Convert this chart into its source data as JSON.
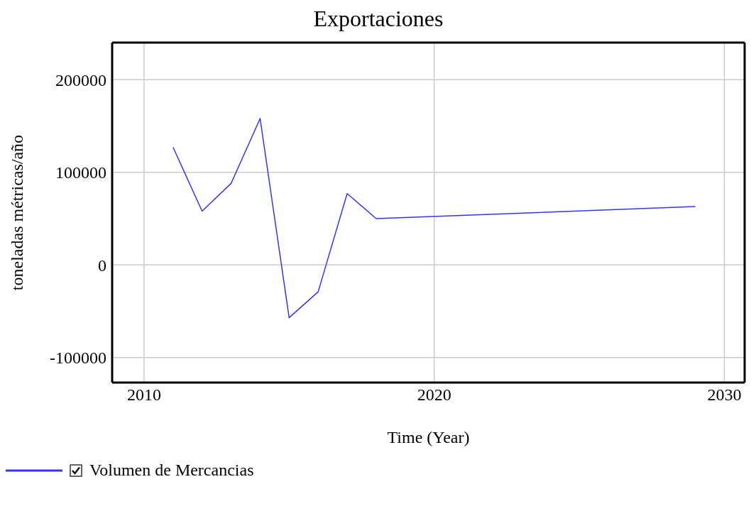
{
  "chart_data": {
    "type": "line",
    "title": "Exportaciones",
    "xlabel": "Time (Year)",
    "ylabel": "toneladas métricas/año",
    "x": [
      2011,
      2012,
      2013,
      2014,
      2015,
      2016,
      2017,
      2018,
      2029
    ],
    "series": [
      {
        "name": "Volumen de Mercancias",
        "color": "#3333ff",
        "values": [
          127000,
          58000,
          88000,
          158000,
          -57000,
          -29000,
          77000,
          50000,
          63000
        ]
      }
    ],
    "xlim": [
      2008.9,
      2030.7
    ],
    "xticks": [
      2010,
      2020,
      2030
    ],
    "ylim": [
      -127000,
      240000
    ],
    "yticks": [
      -100000,
      0,
      100000,
      200000
    ],
    "grid": true,
    "legend": "bottom left",
    "marker": "none",
    "line_style": "solid"
  }
}
